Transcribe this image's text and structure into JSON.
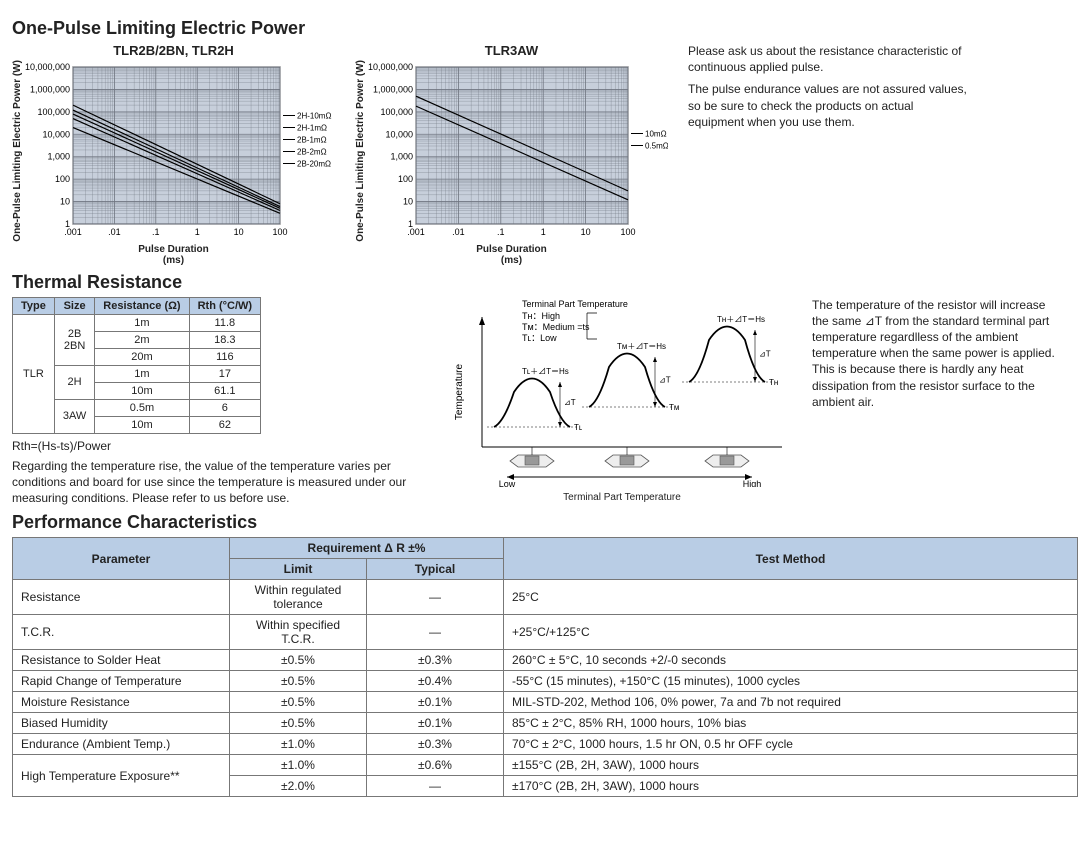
{
  "sec1": {
    "title": "One-Pulse Limiting Electric Power",
    "chart1": {
      "title": "TLR2B/2BN, TLR2H",
      "ylabel": "One-Pulse Limiting Electric Power (W)",
      "xlabel": "Pulse Duration\n(ms)",
      "yticks": [
        "1",
        "10",
        "100",
        "1,000",
        "10,000",
        "100,000",
        "1,000,000",
        "10,000,000"
      ],
      "xticks": [
        ".001",
        ".01",
        ".1",
        "1",
        "10",
        "100"
      ],
      "legend": [
        "2H-10mΩ",
        "2H-1mΩ",
        "2B-1mΩ",
        "2B-2mΩ",
        "2B-20mΩ"
      ],
      "bg": "#c7cfdb",
      "grid": "#6f7580",
      "lines": [
        {
          "y0": 200000,
          "y1": 8
        },
        {
          "y0": 120000,
          "y1": 6
        },
        {
          "y0": 80000,
          "y1": 5
        },
        {
          "y0": 50000,
          "y1": 4
        },
        {
          "y0": 20000,
          "y1": 3
        }
      ]
    },
    "chart2": {
      "title": "TLR3AW",
      "ylabel": "One-Pulse Limiting Electric Power (W)",
      "xlabel": "Pulse Duration\n(ms)",
      "yticks": [
        "1",
        "10",
        "100",
        "1,000",
        "10,000",
        "100,000",
        "1,000,000",
        "10,000,000"
      ],
      "xticks": [
        ".001",
        ".01",
        ".1",
        "1",
        "10",
        "100"
      ],
      "legend": [
        "10mΩ",
        "0.5mΩ"
      ],
      "bg": "#c7cfdb",
      "grid": "#6f7580",
      "lines": [
        {
          "y0": 500000,
          "y1": 30
        },
        {
          "y0": 180000,
          "y1": 12
        }
      ]
    },
    "asideA": "Please ask us about the resistance characteristic of continuous applied pulse.",
    "asideB": "The pulse endurance values are not assured values, so be sure to check the products on actual equipment when you use them."
  },
  "sec2": {
    "title": "Thermal Resistance",
    "table": {
      "headers": [
        "Type",
        "Size",
        "Resistance (Ω)",
        "Rth (°C/W)"
      ],
      "type": "TLR",
      "groups": [
        {
          "size": "2B\n2BN",
          "rows": [
            [
              "1m",
              "11.8"
            ],
            [
              "2m",
              "18.3"
            ],
            [
              "20m",
              "116"
            ]
          ]
        },
        {
          "size": "2H",
          "rows": [
            [
              "1m",
              "17"
            ],
            [
              "10m",
              "61.1"
            ]
          ]
        },
        {
          "size": "3AW",
          "rows": [
            [
              "0.5m",
              "6"
            ],
            [
              "10m",
              "62"
            ]
          ]
        }
      ]
    },
    "formula": "Rth=(Hs-ts)/Power",
    "note": "Regarding the temperature rise, the value of the temperature varies per conditions and board for use since the temperature is measured under our measuring conditions. Please refer to us before use.",
    "aside": "The temperature of the resistor will increase the same ⊿T from the standard terminal part temperature regardlless of the ambient temperature when the same power is applied. This is because there is hardly any heat dissipation from the resistor surface to the ambient air.",
    "diagram": {
      "ylabel": "Temperature",
      "topLabel": "Terminal Part Temperature",
      "lines": [
        "Tʜ：High",
        "Tᴍ：Medium  =ts",
        "Tʟ：Low"
      ],
      "peaks": [
        "Tʟ＋⊿T＝Hs",
        "Tᴍ＋⊿T＝Hs",
        "Tʜ＋⊿T＝Hs"
      ],
      "dt": "⊿T",
      "bases": [
        "Tʟ",
        "Tᴍ",
        "Tʜ"
      ],
      "scale": [
        "Low",
        "High"
      ],
      "xlabel": "Terminal Part Temperature"
    }
  },
  "sec3": {
    "title": "Performance Characteristics",
    "headers": {
      "param": "Parameter",
      "req": "Requirement Δ R ±%",
      "limit": "Limit",
      "typ": "Typical",
      "test": "Test Method"
    },
    "rows": [
      {
        "p": "Resistance",
        "l": "Within regulated tolerance",
        "t": "—",
        "m": "25°C"
      },
      {
        "p": "T.C.R.",
        "l": "Within specified T.C.R.",
        "t": "—",
        "m": "+25°C/+125°C"
      },
      {
        "p": "Resistance to Solder Heat",
        "l": "±0.5%",
        "t": "±0.3%",
        "m": "260°C ± 5°C, 10 seconds +2/-0 seconds"
      },
      {
        "p": "Rapid Change of Temperature",
        "l": "±0.5%",
        "t": "±0.4%",
        "m": "-55°C (15 minutes), +150°C (15 minutes), 1000 cycles"
      },
      {
        "p": "Moisture Resistance",
        "l": "±0.5%",
        "t": "±0.1%",
        "m": "MIL-STD-202, Method 106, 0% power, 7a and 7b not required"
      },
      {
        "p": "Biased Humidity",
        "l": "±0.5%",
        "t": "±0.1%",
        "m": "85°C ± 2°C, 85% RH, 1000 hours, 10% bias"
      },
      {
        "p": "Endurance (Ambient Temp.)",
        "l": "±1.0%",
        "t": "±0.3%",
        "m": "70°C ± 2°C, 1000 hours, 1.5 hr ON, 0.5 hr OFF cycle"
      }
    ],
    "hte": {
      "p": "High Temperature Exposure**",
      "r1": {
        "l": "±1.0%",
        "t": "±0.6%",
        "m": "±155°C (2B, 2H, 3AW), 1000 hours"
      },
      "r2": {
        "l": "±2.0%",
        "t": "—",
        "m": "±170°C (2B, 2H, 3AW), 1000 hours"
      }
    }
  }
}
